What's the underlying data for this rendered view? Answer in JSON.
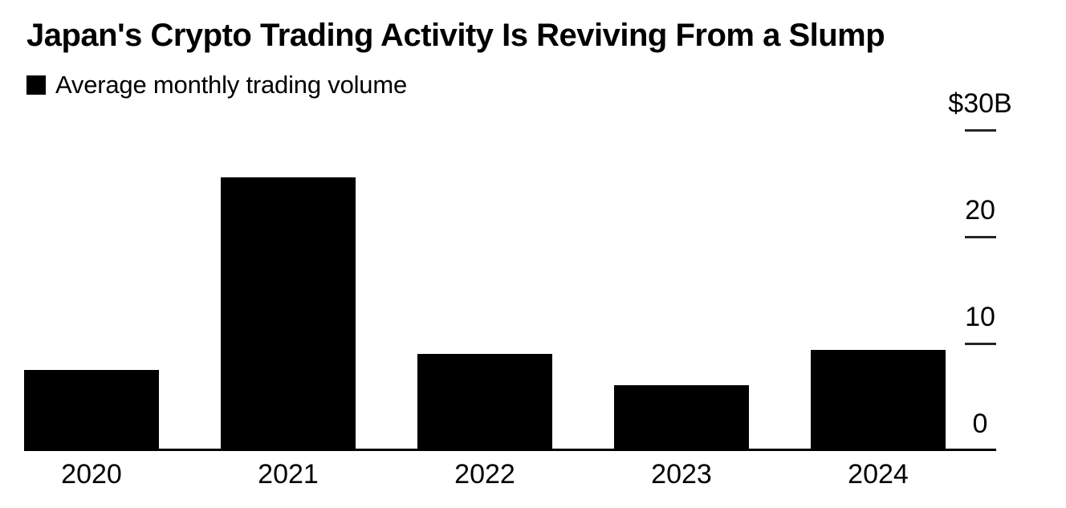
{
  "title": "Japan's Crypto Trading Activity Is Reviving From a Slump",
  "legend": {
    "label": "Average monthly trading volume",
    "swatch_color": "#000000"
  },
  "colors": {
    "background": "#ffffff",
    "bar": "#000000",
    "text": "#000000",
    "axis_line": "#000000",
    "tick_dash": "#262626"
  },
  "chart_data": {
    "type": "bar",
    "title": "Japan's Crypto Trading Activity Is Reviving From a Slump",
    "series_label": "Average monthly trading volume",
    "categories": [
      "2020",
      "2021",
      "2022",
      "2023",
      "2024"
    ],
    "values": [
      7.5,
      25.6,
      9.0,
      6.1,
      9.4
    ],
    "unit_prefix": "$",
    "unit_suffix": "B",
    "xlabel": "",
    "ylabel": "",
    "ylim": [
      0,
      30
    ],
    "yticks": [
      {
        "value": 0,
        "label": "0"
      },
      {
        "value": 10,
        "label": "10"
      },
      {
        "value": 20,
        "label": "20"
      },
      {
        "value": 30,
        "label": "$30B"
      }
    ],
    "grid": false,
    "legend_position": "top-left",
    "y_axis_side": "right",
    "bar_color": "#000000",
    "background": "#ffffff"
  }
}
